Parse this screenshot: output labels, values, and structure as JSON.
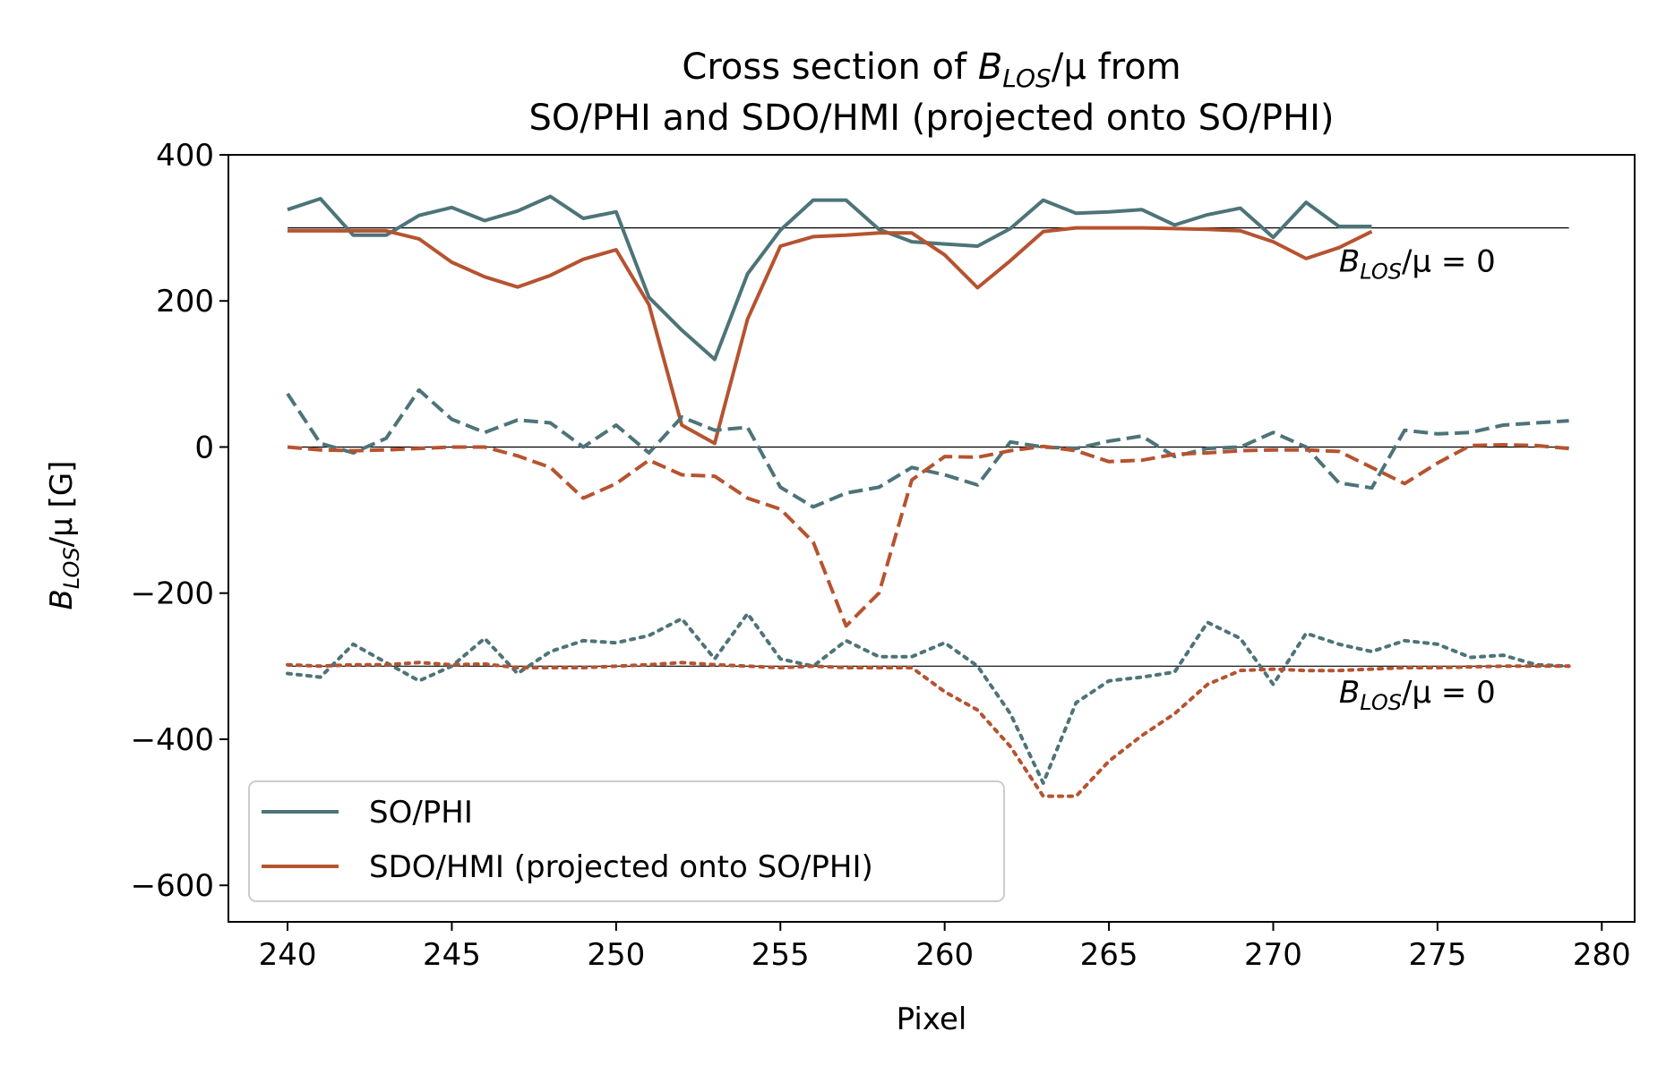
{
  "chart_data": {
    "type": "line",
    "title": "Cross section of B_LOS/μ from SO/PHI and SDO/HMI (projected onto SO/PHI)",
    "title_lines": [
      "Cross section of ",
      "B",
      "LOS",
      "/μ from",
      "SO/PHI and SDO/HMI (projected onto SO/PHI)"
    ],
    "xlabel": "Pixel",
    "ylabel_parts": [
      "B",
      "LOS",
      "/μ [G]"
    ],
    "xlim": [
      238.2,
      281.0
    ],
    "ylim": [
      -650,
      400
    ],
    "xticks": [
      240,
      245,
      250,
      255,
      260,
      265,
      270,
      275,
      280
    ],
    "yticks": [
      400,
      200,
      0,
      -200,
      -400,
      -600
    ],
    "ytick_labels": [
      "400",
      "200",
      "0",
      "−200",
      "−400",
      "−600"
    ],
    "colors": {
      "phi": "#4d7478",
      "hmi": "#b65330",
      "reference": "#000000"
    },
    "reference_lines": [
      {
        "y": 300,
        "x_range": [
          240,
          279
        ]
      },
      {
        "y": 0,
        "x_range": [
          240,
          279
        ]
      },
      {
        "y": -300,
        "x_range": [
          240,
          279
        ]
      }
    ],
    "annotations": [
      {
        "parts": [
          "B",
          "LOS",
          "/μ = 0"
        ],
        "x": 272,
        "y": 240
      },
      {
        "parts": [
          "B",
          "LOS",
          "/μ = 0"
        ],
        "x": 272,
        "y": -350
      }
    ],
    "legend": {
      "position": "lower-left",
      "entries": [
        {
          "label": "SO/PHI",
          "color": "#4d7478"
        },
        {
          "label": "SDO/HMI (projected onto SO/PHI)",
          "color": "#b65330"
        }
      ]
    },
    "series": [
      {
        "name": "SO/PHI solid",
        "instrument": "phi",
        "style": "solid",
        "color": "#4d7478",
        "x": [
          240,
          241,
          242,
          243,
          244,
          245,
          246,
          247,
          248,
          249,
          250,
          251,
          252,
          253,
          254,
          255,
          256,
          257,
          258,
          259,
          260,
          261,
          262,
          263,
          264,
          265,
          266,
          267,
          268,
          269,
          270,
          271,
          272,
          273
        ],
        "y": [
          325,
          340,
          290,
          290,
          317,
          328,
          310,
          323,
          343,
          313,
          322,
          205,
          160,
          120,
          237,
          297,
          338,
          338,
          298,
          281,
          278,
          275,
          299,
          338,
          320,
          322,
          325,
          304,
          318,
          327,
          287,
          335,
          302,
          302
        ]
      },
      {
        "name": "SDO/HMI solid",
        "instrument": "hmi",
        "style": "solid",
        "color": "#b65330",
        "x": [
          240,
          241,
          242,
          243,
          244,
          245,
          246,
          247,
          248,
          249,
          250,
          251,
          252,
          253,
          254,
          255,
          256,
          257,
          258,
          259,
          260,
          261,
          262,
          263,
          264,
          265,
          266,
          267,
          268,
          269,
          270,
          271,
          272,
          273
        ],
        "y": [
          296,
          296,
          296,
          296,
          285,
          253,
          233,
          219,
          235,
          257,
          270,
          195,
          30,
          5,
          175,
          275,
          288,
          290,
          293,
          293,
          263,
          218,
          255,
          295,
          300,
          300,
          300,
          299,
          298,
          296,
          281,
          258,
          273,
          295
        ]
      },
      {
        "name": "SO/PHI dashed",
        "instrument": "phi",
        "style": "dashed",
        "color": "#4d7478",
        "x": [
          240,
          241,
          242,
          243,
          244,
          245,
          246,
          247,
          248,
          249,
          250,
          251,
          252,
          253,
          254,
          255,
          256,
          257,
          258,
          259,
          260,
          261,
          262,
          263,
          264,
          265,
          266,
          267,
          268,
          269,
          270,
          271,
          272,
          273,
          274,
          275,
          276,
          277,
          278,
          279
        ],
        "y": [
          73,
          5,
          -8,
          12,
          78,
          38,
          20,
          37,
          33,
          0,
          30,
          -8,
          41,
          23,
          27,
          -55,
          -82,
          -63,
          -55,
          -28,
          -38,
          -52,
          7,
          0,
          -2,
          8,
          15,
          -13,
          -2,
          0,
          20,
          0,
          -49,
          -56,
          23,
          18,
          20,
          30,
          33,
          36
        ]
      },
      {
        "name": "SDO/HMI dashed",
        "instrument": "hmi",
        "style": "dashed",
        "color": "#b65330",
        "x": [
          240,
          241,
          242,
          243,
          244,
          245,
          246,
          247,
          248,
          249,
          250,
          251,
          252,
          253,
          254,
          255,
          256,
          257,
          258,
          259,
          260,
          261,
          262,
          263,
          264,
          265,
          266,
          267,
          268,
          269,
          270,
          271,
          272,
          273,
          274,
          275,
          276,
          277,
          278,
          279
        ],
        "y": [
          0,
          -4,
          -5,
          -4,
          -2,
          0,
          0,
          -12,
          -28,
          -70,
          -50,
          -18,
          -38,
          -40,
          -70,
          -85,
          -130,
          -245,
          -200,
          -45,
          -13,
          -14,
          -5,
          1,
          -5,
          -20,
          -18,
          -10,
          -8,
          -5,
          -4,
          -4,
          -6,
          -28,
          -50,
          -22,
          2,
          3,
          2,
          -2
        ]
      },
      {
        "name": "SO/PHI dotted",
        "instrument": "phi",
        "style": "dotted",
        "color": "#4d7478",
        "x": [
          240,
          241,
          242,
          243,
          244,
          245,
          246,
          247,
          248,
          249,
          250,
          251,
          252,
          253,
          254,
          255,
          256,
          257,
          258,
          259,
          260,
          261,
          262,
          263,
          264,
          265,
          266,
          267,
          268,
          269,
          270,
          271,
          272,
          273,
          274,
          275,
          276,
          277,
          278,
          279
        ],
        "y": [
          -310,
          -315,
          -270,
          -295,
          -320,
          -300,
          -262,
          -310,
          -280,
          -265,
          -268,
          -258,
          -235,
          -290,
          -228,
          -290,
          -300,
          -265,
          -287,
          -287,
          -268,
          -300,
          -365,
          -460,
          -350,
          -320,
          -315,
          -308,
          -240,
          -262,
          -325,
          -255,
          -270,
          -280,
          -265,
          -270,
          -288,
          -285,
          -298,
          -300
        ]
      },
      {
        "name": "SDO/HMI dotted",
        "instrument": "hmi",
        "style": "dotted",
        "color": "#b65330",
        "x": [
          240,
          241,
          242,
          243,
          244,
          245,
          246,
          247,
          248,
          249,
          250,
          251,
          252,
          253,
          254,
          255,
          256,
          257,
          258,
          259,
          260,
          261,
          262,
          263,
          264,
          265,
          266,
          267,
          268,
          269,
          270,
          271,
          272,
          273,
          274,
          275,
          276,
          277,
          278,
          279
        ],
        "y": [
          -298,
          -300,
          -298,
          -298,
          -295,
          -298,
          -297,
          -302,
          -302,
          -302,
          -300,
          -298,
          -295,
          -298,
          -300,
          -302,
          -300,
          -302,
          -302,
          -302,
          -335,
          -360,
          -410,
          -478,
          -478,
          -430,
          -395,
          -365,
          -325,
          -306,
          -304,
          -306,
          -306,
          -304,
          -302,
          -302,
          -301,
          -300,
          -300,
          -300
        ]
      }
    ]
  }
}
